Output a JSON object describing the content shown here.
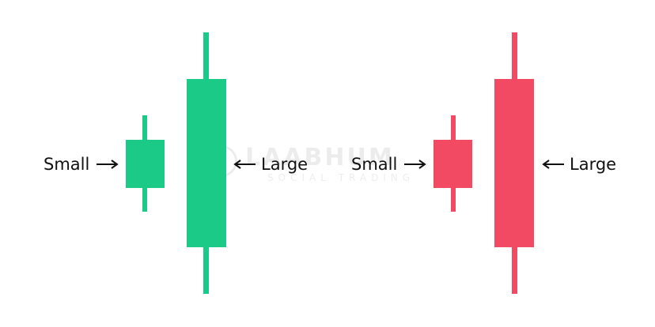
{
  "watermark": {
    "title": "LAABHUM",
    "subtitle": "SOCIAL TRADING"
  },
  "colors": {
    "bullish": "#1bca86",
    "bearish": "#f24a63",
    "text": "#111111"
  },
  "groups": [
    {
      "name": "bullish-pair",
      "color": "bullish",
      "small_label": "Small",
      "large_label": "Large"
    },
    {
      "name": "bearish-pair",
      "color": "bearish",
      "small_label": "Small",
      "large_label": "Large"
    }
  ]
}
